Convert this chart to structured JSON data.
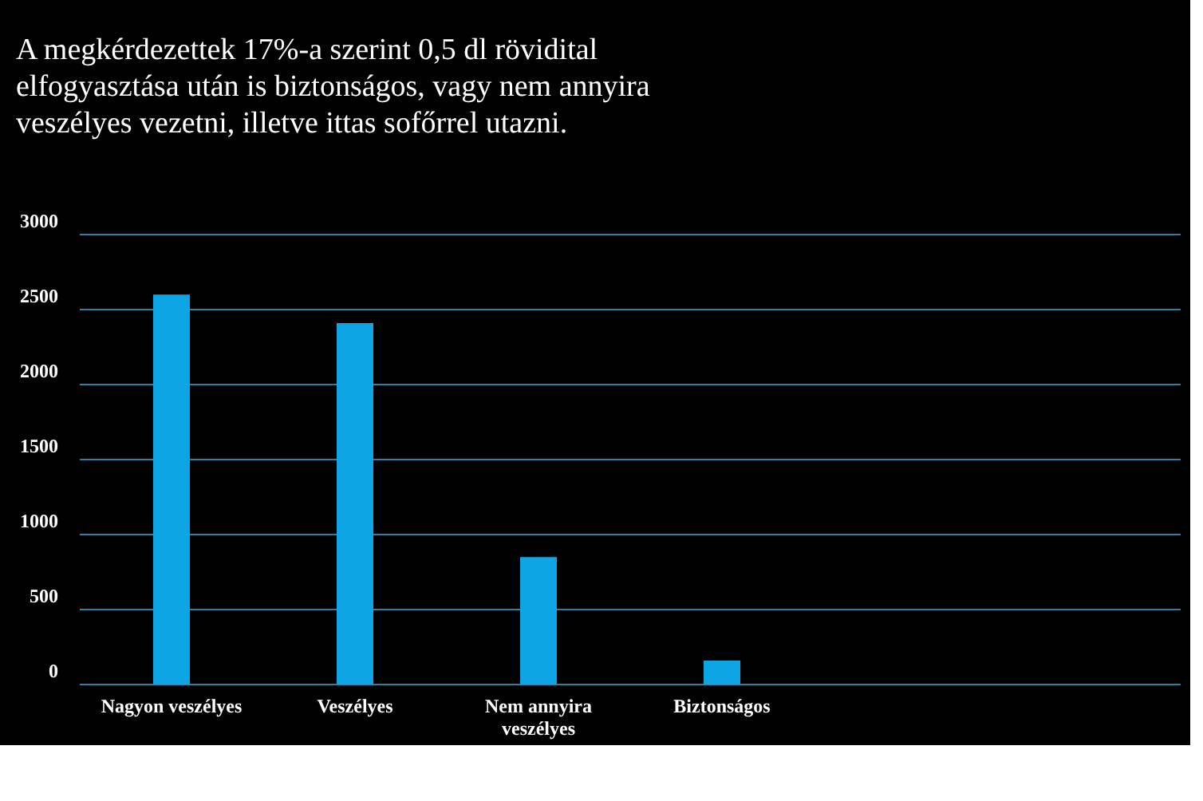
{
  "chart_data": {
    "type": "bar",
    "title": "A megkérdezettek 17%-a szerint 0,5 dl rövidital elfogyasztása után is biztonságos, vagy nem annyira veszélyes vezetni, illetve ittas sofőrrel utazni.",
    "categories": [
      "Nagyon veszélyes",
      "Veszélyes",
      "Nem annyira veszélyes",
      "Biztonságos"
    ],
    "values": [
      2600,
      2410,
      850,
      160
    ],
    "color": "#0ea5e4",
    "ylim": [
      0,
      3000
    ],
    "yticks": [
      0,
      500,
      1000,
      1500,
      2000,
      2500,
      3000
    ],
    "grid": "y"
  }
}
